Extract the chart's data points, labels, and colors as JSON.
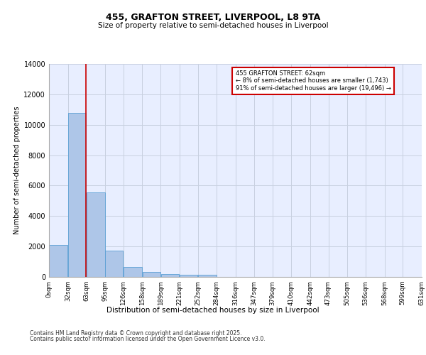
{
  "title1": "455, GRAFTON STREET, LIVERPOOL, L8 9TA",
  "title2": "Size of property relative to semi-detached houses in Liverpool",
  "xlabel": "Distribution of semi-detached houses by size in Liverpool",
  "ylabel": "Number of semi-detached properties",
  "annotation_title": "455 GRAFTON STREET: 62sqm",
  "annotation_line2": "← 8% of semi-detached houses are smaller (1,743)",
  "annotation_line3": "91% of semi-detached houses are larger (19,496) →",
  "footer1": "Contains HM Land Registry data © Crown copyright and database right 2025.",
  "footer2": "Contains public sector information licensed under the Open Government Licence v3.0.",
  "property_size": 62,
  "bins": [
    0,
    32,
    63,
    95,
    126,
    158,
    189,
    221,
    252,
    284,
    316,
    347,
    379,
    410,
    442,
    473,
    505,
    536,
    568,
    599,
    631
  ],
  "bin_labels": [
    "0sqm",
    "32sqm",
    "63sqm",
    "95sqm",
    "126sqm",
    "158sqm",
    "189sqm",
    "221sqm",
    "252sqm",
    "284sqm",
    "316sqm",
    "347sqm",
    "379sqm",
    "410sqm",
    "442sqm",
    "473sqm",
    "505sqm",
    "536sqm",
    "568sqm",
    "599sqm",
    "631sqm"
  ],
  "values": [
    2100,
    10800,
    5550,
    1750,
    650,
    320,
    200,
    150,
    120,
    0,
    0,
    0,
    0,
    0,
    0,
    0,
    0,
    0,
    0,
    0
  ],
  "bar_color": "#aec6e8",
  "bar_edge_color": "#5a9fd4",
  "vline_color": "#cc0000",
  "annotation_box_color": "#cc0000",
  "bg_color": "#e8eeff",
  "grid_color": "#c8d0e0",
  "ylim": [
    0,
    14000
  ],
  "yticks": [
    0,
    2000,
    4000,
    6000,
    8000,
    10000,
    12000,
    14000
  ]
}
